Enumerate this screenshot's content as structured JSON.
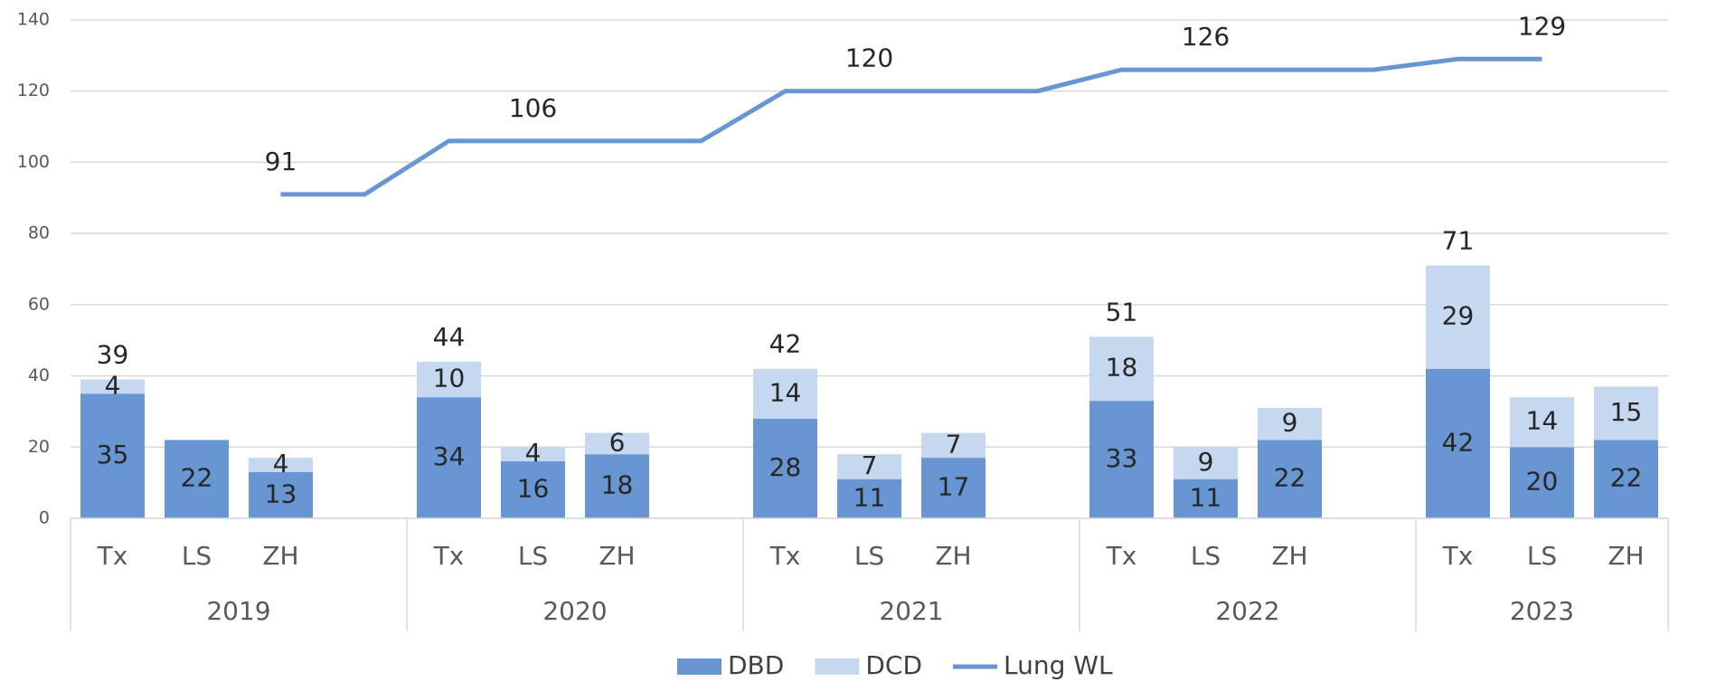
{
  "chart_data": {
    "type": "stacked_bar_line",
    "categories": [
      "Tx",
      "LS",
      "ZH",
      null,
      "Tx",
      "LS",
      "ZH",
      null,
      "Tx",
      "LS",
      "ZH",
      null,
      "Tx",
      "LS",
      "ZH",
      null,
      "Tx",
      "LS",
      "ZH"
    ],
    "category_groups": [
      "2019",
      "2019",
      "2019",
      "2019",
      "2020",
      "2020",
      "2020",
      "2020",
      "2021",
      "2021",
      "2021",
      "2021",
      "2022",
      "2022",
      "2022",
      "2022",
      "2023",
      "2023",
      "2023"
    ],
    "series": [
      {
        "name": "DBD",
        "kind": "bar",
        "color": "#6896d2",
        "values": [
          35,
          22,
          13,
          null,
          34,
          16,
          18,
          null,
          28,
          11,
          17,
          null,
          33,
          11,
          22,
          null,
          42,
          20,
          22
        ]
      },
      {
        "name": "DCD",
        "kind": "bar",
        "color": "#c5d8f0",
        "values": [
          4,
          null,
          4,
          null,
          10,
          4,
          6,
          null,
          14,
          7,
          7,
          null,
          18,
          9,
          9,
          null,
          29,
          14,
          15
        ]
      },
      {
        "name": "Lung WL",
        "kind": "line",
        "color": "#6896d2",
        "values": [
          null,
          null,
          91,
          91,
          106,
          106,
          106,
          106,
          120,
          120,
          120,
          120,
          126,
          126,
          126,
          126,
          129,
          129,
          null
        ],
        "value_labels": [
          null,
          null,
          "91",
          null,
          null,
          "106",
          null,
          null,
          null,
          "120",
          null,
          null,
          null,
          "126",
          null,
          null,
          null,
          "129",
          null
        ]
      }
    ],
    "totals": [
      39,
      null,
      null,
      null,
      44,
      null,
      null,
      null,
      42,
      null,
      null,
      null,
      51,
      null,
      null,
      null,
      71,
      null,
      null
    ],
    "ylim": [
      0,
      140
    ],
    "yticks": [
      0,
      20,
      40,
      60,
      80,
      100,
      120,
      140
    ],
    "grid": true,
    "legend": "bottom"
  }
}
